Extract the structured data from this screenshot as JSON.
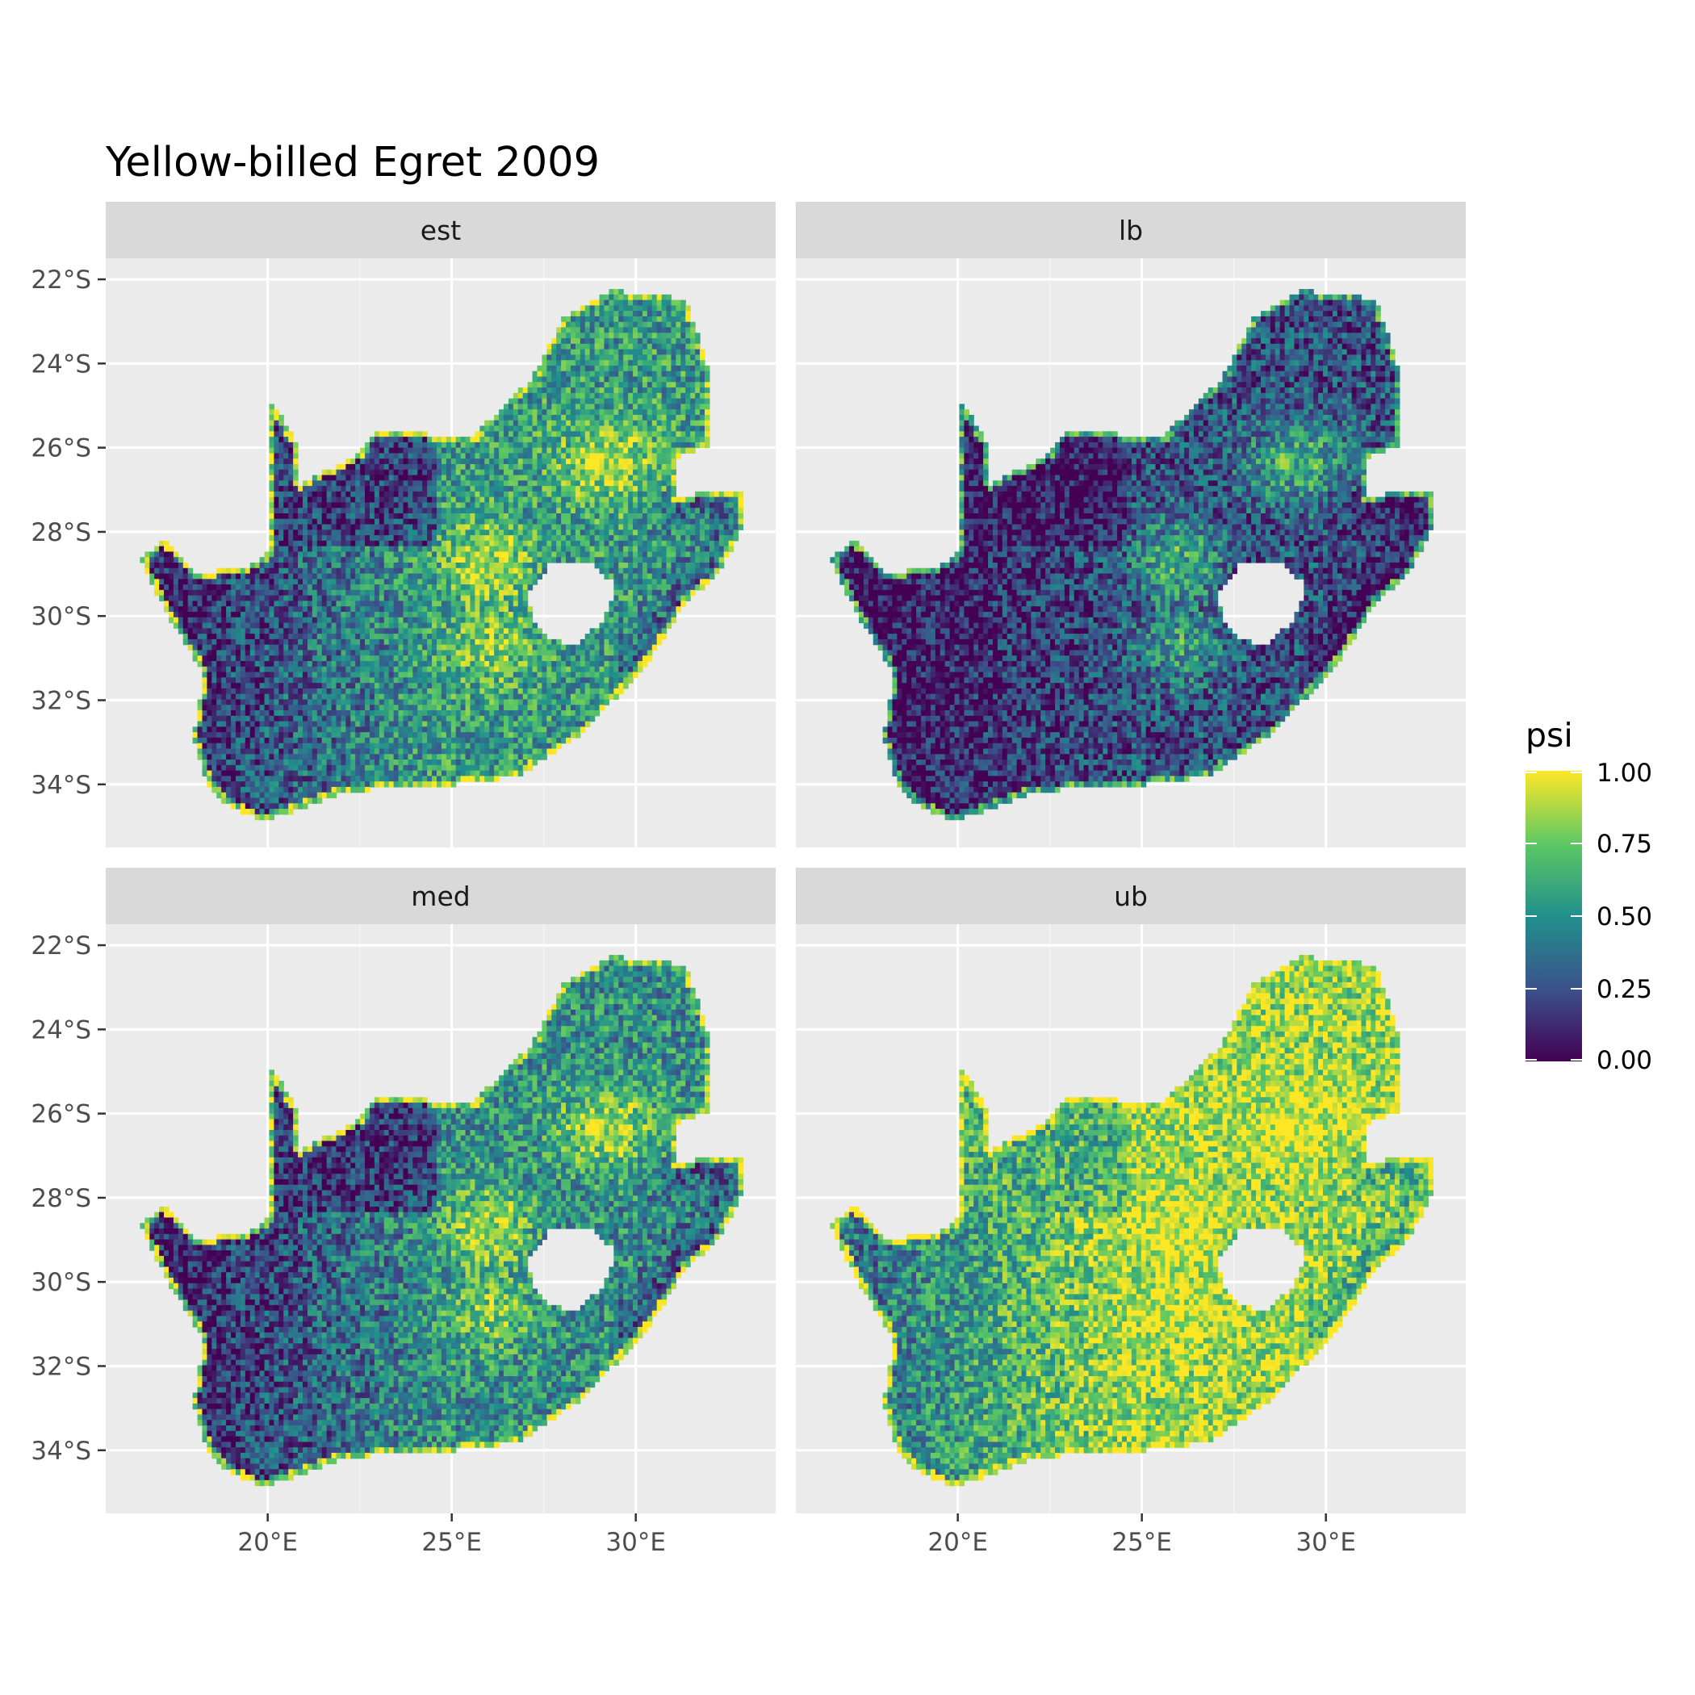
{
  "chart_data": {
    "type": "heatmap",
    "title": "Yellow-billed Egret 2009",
    "panels": [
      {
        "label": "est",
        "level_inland": 0.55,
        "level_west": 0.12,
        "level_hotspot": 0.9
      },
      {
        "label": "lb",
        "level_inland": 0.25,
        "level_west": 0.03,
        "level_hotspot": 0.65
      },
      {
        "label": "med",
        "level_inland": 0.5,
        "level_west": 0.1,
        "level_hotspot": 0.88
      },
      {
        "label": "ub",
        "level_inland": 0.85,
        "level_west": 0.4,
        "level_hotspot": 1.0
      }
    ],
    "x_axis": {
      "ticks": [
        20,
        25,
        30
      ],
      "tick_labels": [
        "20°E",
        "25°E",
        "30°E"
      ],
      "range": [
        15.6,
        33.8
      ]
    },
    "y_axis": {
      "ticks": [
        -22,
        -24,
        -26,
        -28,
        -30,
        -32,
        -34
      ],
      "tick_labels": [
        "22°S",
        "24°S",
        "26°S",
        "28°S",
        "30°S",
        "32°S",
        "34°S"
      ],
      "range": [
        -35.5,
        -21.5
      ]
    },
    "legend": {
      "title": "psi",
      "position": "right",
      "min": 0,
      "max": 1,
      "breaks": [
        0,
        0.25,
        0.5,
        0.75,
        1
      ],
      "break_labels": [
        "0.00",
        "0.25",
        "0.50",
        "0.75",
        "1.00"
      ],
      "palette": [
        "#440154",
        "#3b528b",
        "#21908c",
        "#5dc863",
        "#fde725"
      ]
    },
    "outline": [
      [
        16.5,
        -28.6
      ],
      [
        17.1,
        -28.1
      ],
      [
        18.0,
        -28.9
      ],
      [
        19.3,
        -28.8
      ],
      [
        20.0,
        -28.4
      ],
      [
        20.0,
        -24.8
      ],
      [
        20.8,
        -25.9
      ],
      [
        20.8,
        -26.8
      ],
      [
        22.4,
        -26.1
      ],
      [
        22.9,
        -25.5
      ],
      [
        24.1,
        -25.6
      ],
      [
        25.5,
        -25.7
      ],
      [
        26.5,
        -24.8
      ],
      [
        27.1,
        -24.3
      ],
      [
        28.0,
        -22.8
      ],
      [
        29.2,
        -22.2
      ],
      [
        30.3,
        -22.3
      ],
      [
        31.3,
        -22.4
      ],
      [
        32.0,
        -24.3
      ],
      [
        31.9,
        -25.9
      ],
      [
        31.0,
        -26.2
      ],
      [
        31.0,
        -27.1
      ],
      [
        32.0,
        -27.0
      ],
      [
        32.9,
        -26.9
      ],
      [
        32.8,
        -27.9
      ],
      [
        32.2,
        -28.9
      ],
      [
        31.3,
        -29.6
      ],
      [
        30.3,
        -31.0
      ],
      [
        28.5,
        -32.7
      ],
      [
        26.8,
        -33.7
      ],
      [
        25.6,
        -33.9
      ],
      [
        23.8,
        -34.0
      ],
      [
        22.0,
        -34.1
      ],
      [
        20.5,
        -34.6
      ],
      [
        19.8,
        -34.8
      ],
      [
        18.8,
        -34.4
      ],
      [
        18.3,
        -33.9
      ],
      [
        17.9,
        -32.8
      ],
      [
        18.2,
        -31.3
      ],
      [
        17.2,
        -29.9
      ]
    ],
    "lesotho": [
      [
        27.0,
        -29.4
      ],
      [
        27.6,
        -28.7
      ],
      [
        28.6,
        -28.6
      ],
      [
        29.4,
        -29.2
      ],
      [
        29.1,
        -30.0
      ],
      [
        28.3,
        -30.6
      ],
      [
        27.6,
        -30.5
      ],
      [
        27.1,
        -30.0
      ]
    ]
  }
}
